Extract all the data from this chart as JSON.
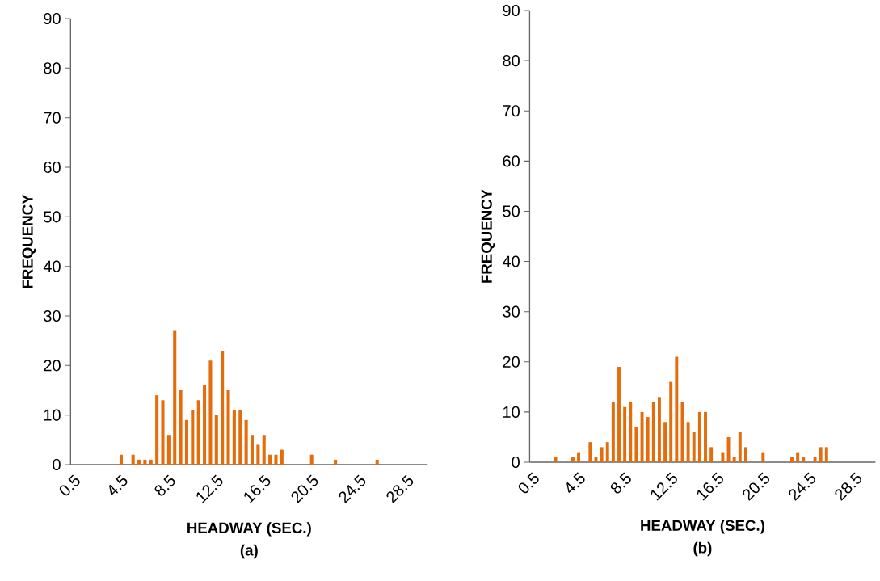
{
  "chart_data": [
    {
      "type": "bar",
      "xlabel": "HEADWAY (SEC.)",
      "ylabel": "FREQUENCY",
      "annotations": [
        "(a)"
      ],
      "color": "#e46c0a",
      "ylim": [
        0,
        90
      ],
      "yticks": [
        0,
        10,
        20,
        30,
        40,
        50,
        60,
        70,
        80,
        90
      ],
      "categories": [
        "0.5",
        null,
        null,
        null,
        null,
        null,
        null,
        null,
        "4.5",
        null,
        null,
        null,
        null,
        null,
        null,
        null,
        "8.5",
        null,
        null,
        null,
        null,
        null,
        null,
        null,
        "12.5",
        null,
        null,
        null,
        null,
        null,
        null,
        null,
        "16.5",
        null,
        null,
        null,
        null,
        null,
        null,
        null,
        "20.5",
        null,
        null,
        null,
        null,
        null,
        null,
        null,
        "24.5",
        null,
        null,
        null,
        null,
        null,
        null,
        null,
        "28.5",
        null,
        null,
        null
      ],
      "values": [
        0,
        0,
        0,
        0,
        0,
        0,
        0,
        0,
        2,
        0,
        2,
        1,
        1,
        1,
        14,
        13,
        6,
        27,
        15,
        9,
        11,
        13,
        16,
        21,
        10,
        23,
        15,
        11,
        11,
        9,
        6,
        4,
        6,
        2,
        2,
        3,
        0,
        0,
        0,
        0,
        2,
        0,
        0,
        0,
        1,
        0,
        0,
        0,
        0,
        0,
        0,
        1,
        0,
        0,
        0,
        0,
        0,
        0,
        0,
        0
      ]
    },
    {
      "type": "bar",
      "xlabel": "HEADWAY (SEC.)",
      "ylabel": "FREQUENCY",
      "annotations": [
        "(b)"
      ],
      "color": "#e46c0a",
      "ylim": [
        0,
        90
      ],
      "yticks": [
        0,
        10,
        20,
        30,
        40,
        50,
        60,
        70,
        80,
        90
      ],
      "categories": [
        "0.5",
        null,
        null,
        null,
        null,
        null,
        null,
        null,
        "4.5",
        null,
        null,
        null,
        null,
        null,
        null,
        null,
        "8.5",
        null,
        null,
        null,
        null,
        null,
        null,
        null,
        "12.5",
        null,
        null,
        null,
        null,
        null,
        null,
        null,
        "16.5",
        null,
        null,
        null,
        null,
        null,
        null,
        null,
        "20.5",
        null,
        null,
        null,
        null,
        null,
        null,
        null,
        "24.5",
        null,
        null,
        null,
        null,
        null,
        null,
        null,
        "28.5",
        null,
        null,
        null
      ],
      "values": [
        0,
        0,
        0,
        0,
        1,
        0,
        0,
        1,
        2,
        0,
        4,
        1,
        3,
        4,
        12,
        19,
        11,
        12,
        7,
        10,
        9,
        12,
        13,
        8,
        16,
        21,
        12,
        8,
        6,
        10,
        10,
        3,
        0,
        2,
        5,
        1,
        6,
        3,
        0,
        0,
        2,
        0,
        0,
        0,
        0,
        1,
        2,
        1,
        0,
        1,
        3,
        3,
        0,
        0,
        0,
        0,
        0,
        0,
        0,
        0
      ]
    }
  ]
}
